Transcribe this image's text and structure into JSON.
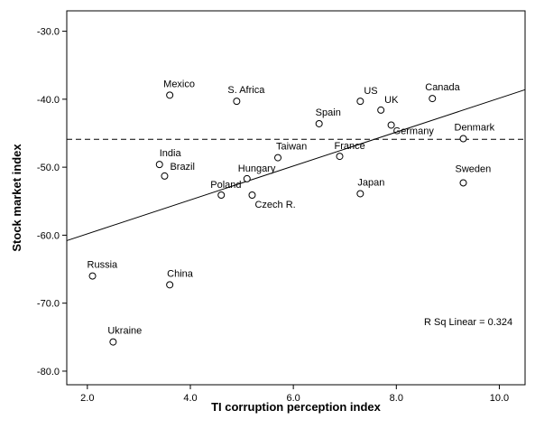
{
  "chart_data": {
    "type": "scatter",
    "xlabel": "TI corruption perception index",
    "ylabel": "Stock market index",
    "xlim": [
      1.6,
      10.5
    ],
    "ylim": [
      -82,
      -27
    ],
    "xticks": [
      2.0,
      4.0,
      6.0,
      8.0,
      10.0
    ],
    "xtick_labels": [
      "2.0",
      "4.0",
      "6.0",
      "8.0",
      "10.0"
    ],
    "yticks": [
      -30,
      -40,
      -50,
      -60,
      -70,
      -80
    ],
    "ytick_labels": [
      "-30.0",
      "-40.0",
      "-50.0",
      "-60.0",
      "-70.0",
      "-80.0"
    ],
    "points": [
      {
        "label": "Mexico",
        "x": 3.6,
        "y": -39.4
      },
      {
        "label": "S. Africa",
        "x": 4.9,
        "y": -40.3
      },
      {
        "label": "US",
        "x": 7.3,
        "y": -40.3
      },
      {
        "label": "Canada",
        "x": 8.7,
        "y": -39.9
      },
      {
        "label": "UK",
        "x": 7.7,
        "y": -41.6
      },
      {
        "label": "Spain",
        "x": 6.5,
        "y": -43.6
      },
      {
        "label": "Germany",
        "x": 7.9,
        "y": -43.8
      },
      {
        "label": "Denmark",
        "x": 9.3,
        "y": -45.8
      },
      {
        "label": "India",
        "x": 3.4,
        "y": -49.6
      },
      {
        "label": "Brazil",
        "x": 3.5,
        "y": -51.3
      },
      {
        "label": "Taiwan",
        "x": 5.7,
        "y": -48.6
      },
      {
        "label": "France",
        "x": 6.9,
        "y": -48.4
      },
      {
        "label": "Hungary",
        "x": 5.1,
        "y": -51.7
      },
      {
        "label": "Poland",
        "x": 4.6,
        "y": -54.1
      },
      {
        "label": "Czech R.",
        "x": 5.2,
        "y": -54.1
      },
      {
        "label": "Japan",
        "x": 7.3,
        "y": -53.9
      },
      {
        "label": "Sweden",
        "x": 9.3,
        "y": -52.3
      },
      {
        "label": "Russia",
        "x": 2.1,
        "y": -66.0
      },
      {
        "label": "China",
        "x": 3.6,
        "y": -67.3
      },
      {
        "label": "Ukraine",
        "x": 2.5,
        "y": -75.7
      }
    ],
    "fit_line": {
      "x1": 1.6,
      "y1": -60.8,
      "x2": 10.5,
      "y2": -38.6
    },
    "reference_line": {
      "y": -45.9,
      "style": "dashed"
    },
    "annotation": "R Sq Linear = 0.324",
    "grid": false,
    "legend": "none"
  }
}
